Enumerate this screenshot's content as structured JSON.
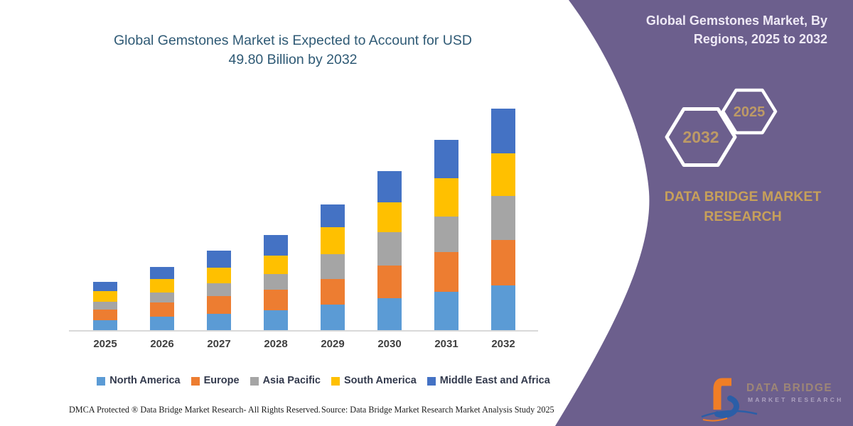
{
  "title": {
    "lines": [
      "Global Gemstones Market is Expected to Account for USD",
      "49.80 Billion by 2032"
    ]
  },
  "chart_data": {
    "type": "bar",
    "stacked": true,
    "title": "Global Gemstones Market is Expected to Account for USD 49.80 Billion by 2032",
    "unit": "USD Billion",
    "categories": [
      "2025",
      "2026",
      "2027",
      "2028",
      "2029",
      "2030",
      "2031",
      "2032"
    ],
    "series": [
      {
        "name": "North America",
        "color": "#5B9BD5",
        "values": [
          2.3,
          3.1,
          3.6,
          4.5,
          5.7,
          7.2,
          8.7,
          10.0
        ]
      },
      {
        "name": "Europe",
        "color": "#ED7D31",
        "values": [
          2.4,
          3.1,
          4.0,
          4.6,
          5.8,
          7.4,
          8.9,
          10.2
        ]
      },
      {
        "name": "Asia Pacific",
        "color": "#A5A5A5",
        "values": [
          1.7,
          2.3,
          2.9,
          3.5,
          5.6,
          7.4,
          7.9,
          9.9
        ]
      },
      {
        "name": "South America",
        "color": "#FFC000",
        "values": [
          2.4,
          3.0,
          3.6,
          4.2,
          6.0,
          6.7,
          8.6,
          9.7
        ]
      },
      {
        "name": "Middle East and Africa",
        "color": "#4472C4",
        "values": [
          2.1,
          2.7,
          3.7,
          4.6,
          5.2,
          7.0,
          8.7,
          10.0
        ]
      }
    ],
    "totals": [
      10.9,
      14.2,
      17.8,
      21.4,
      28.3,
      35.7,
      42.8,
      49.8
    ],
    "ylim": [
      0,
      50
    ],
    "grid": false,
    "y_axis_visible": false,
    "legend_position": "bottom"
  },
  "side_panel": {
    "title_lines": [
      "Global Gemstones Market, By",
      "Regions, 2025 to 2032"
    ],
    "hexagons": [
      {
        "label": "2032"
      },
      {
        "label": "2025"
      }
    ],
    "brand_lines": [
      "DATA BRIDGE MARKET",
      "RESEARCH"
    ],
    "logo": {
      "text_primary": "DATA BRIDGE",
      "text_secondary": "MARKET RESEARCH"
    }
  },
  "footer": {
    "left": "DMCA Protected ® Data Bridge Market Research-  All Rights Reserved.",
    "source": "Source: Data Bridge Market Research  Market Analysis Study 2025"
  },
  "colors": {
    "panel_purple": "#6C5F8D",
    "hexagon_outline": "#FFFFFF",
    "gold_text": "#C7A05A",
    "hexagon_year_text": "#BD9A66",
    "title_text": "#2F5A75",
    "axis_line": "#D9D9D9",
    "tick_label": "#3F3F3F",
    "legend_text": "#333A4D",
    "logo_orange": "#F07E26",
    "logo_blue": "#2B5EA7"
  }
}
